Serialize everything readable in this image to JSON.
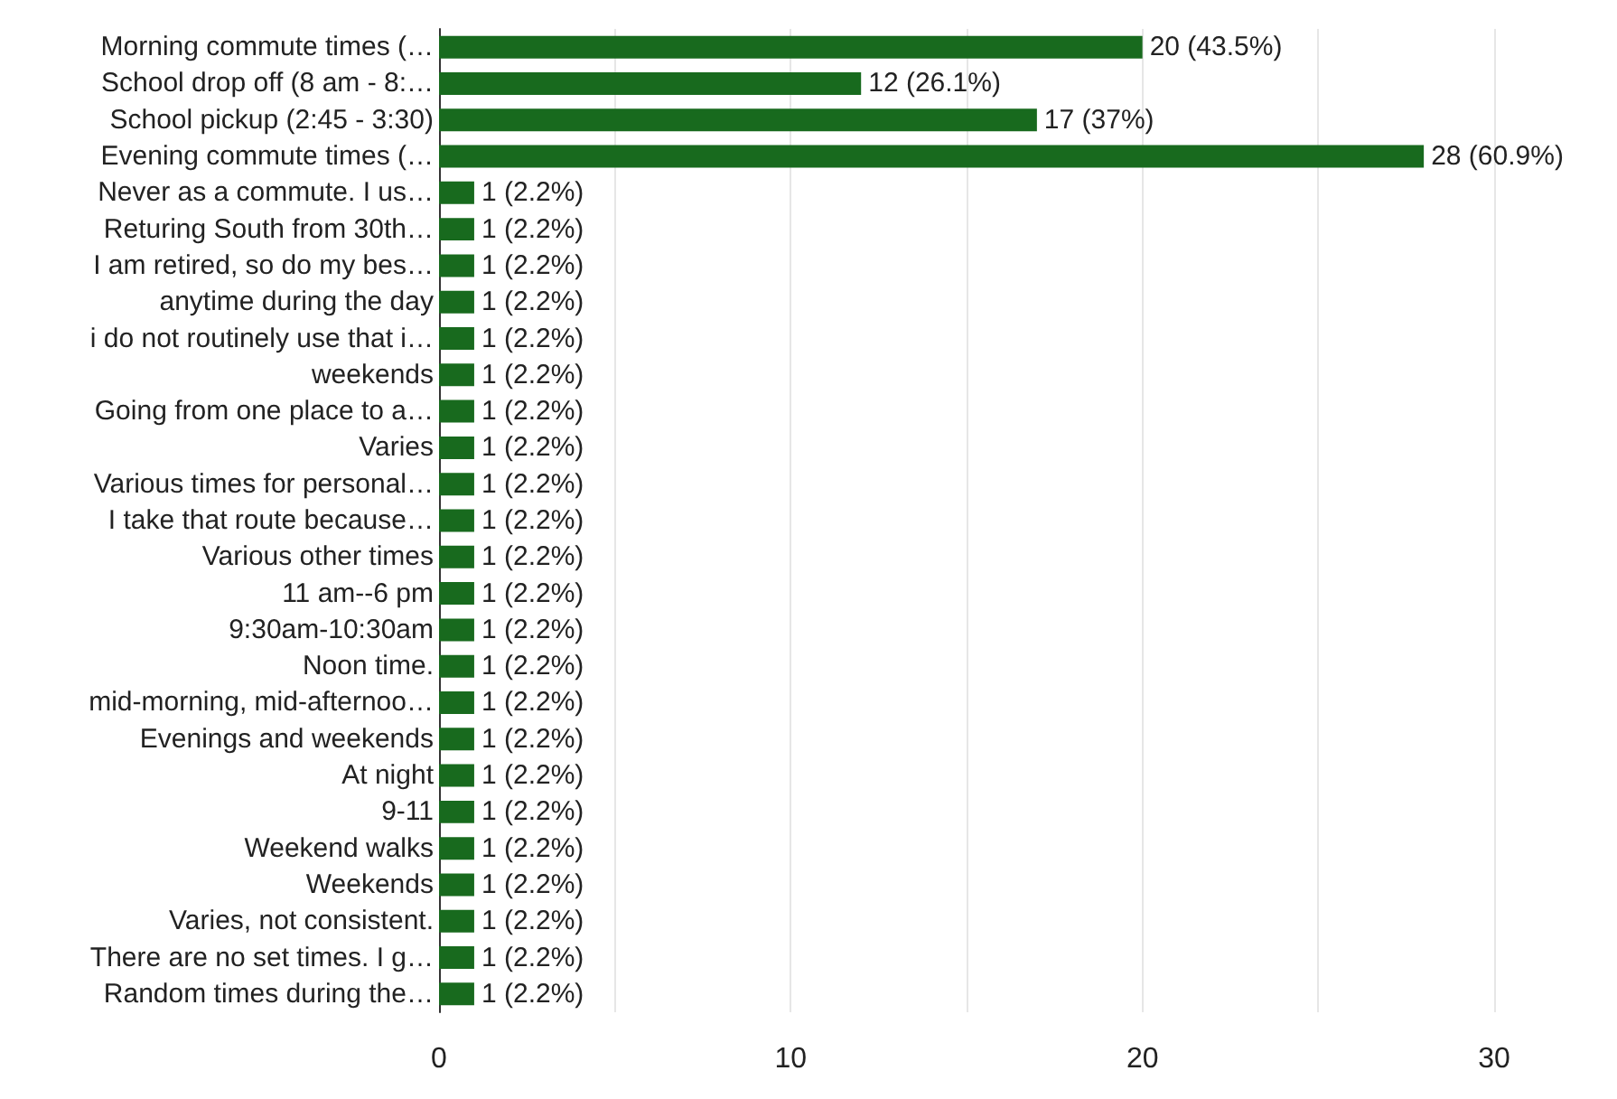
{
  "chart_data": {
    "type": "bar",
    "orientation": "horizontal",
    "categories": [
      "Morning commute times (…",
      "School drop off (8 am - 8:…",
      "School pickup (2:45 - 3:30)",
      "Evening commute times (…",
      "Never as a commute. I us…",
      "Returing South from 30th…",
      "I am retired, so do my bes…",
      "anytime during the day",
      "i do not routinely use that i…",
      "weekends",
      "Going from one place to a…",
      "Varies",
      "Various times for personal…",
      "I take that route because…",
      "Various other times",
      "11 am--6 pm",
      "9:30am-10:30am",
      "Noon time.",
      "mid-morning, mid-afternoo…",
      "Evenings and weekends",
      "At night",
      "9-11",
      "Weekend walks",
      "Weekends",
      "Varies, not consistent.",
      "There are no set times. I g…",
      "Random times during the…"
    ],
    "values": [
      20,
      12,
      17,
      28,
      1,
      1,
      1,
      1,
      1,
      1,
      1,
      1,
      1,
      1,
      1,
      1,
      1,
      1,
      1,
      1,
      1,
      1,
      1,
      1,
      1,
      1,
      1
    ],
    "value_labels": [
      "20 (43.5%)",
      "12 (26.1%)",
      "17 (37%)",
      "28 (60.9%)",
      "1 (2.2%)",
      "1 (2.2%)",
      "1 (2.2%)",
      "1 (2.2%)",
      "1 (2.2%)",
      "1 (2.2%)",
      "1 (2.2%)",
      "1 (2.2%)",
      "1 (2.2%)",
      "1 (2.2%)",
      "1 (2.2%)",
      "1 (2.2%)",
      "1 (2.2%)",
      "1 (2.2%)",
      "1 (2.2%)",
      "1 (2.2%)",
      "1 (2.2%)",
      "1 (2.2%)",
      "1 (2.2%)",
      "1 (2.2%)",
      "1 (2.2%)",
      "1 (2.2%)",
      "1 (2.2%)"
    ],
    "color": "#186a1e",
    "xlim": [
      0,
      30
    ],
    "xticks": [
      0,
      {
        "value": 5,
        "label": null
      },
      10,
      {
        "value": 15,
        "label": null
      },
      20,
      {
        "value": 25,
        "label": null
      },
      30
    ],
    "grid": "x"
  }
}
